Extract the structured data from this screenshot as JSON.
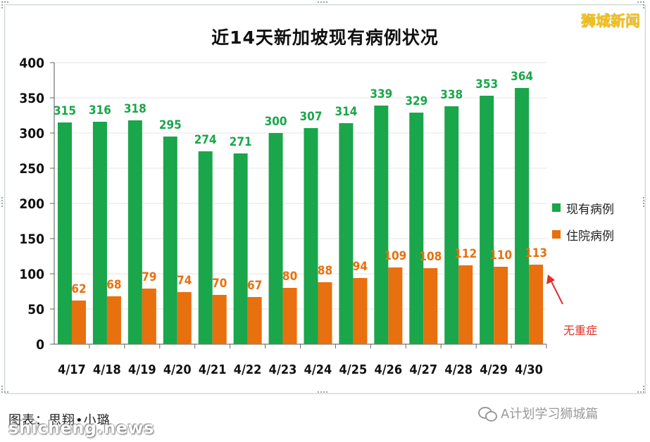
{
  "brand": "狮城新闻",
  "credit": "图表：思翔•小璐",
  "watermark": "shicheng.news",
  "wechat_account": "A计划学习狮城篇",
  "annotation": "无重症",
  "colors": {
    "existing": "#1aa64a",
    "hospitalized": "#e8700e",
    "annotation": "#e0302a"
  },
  "chart_data": {
    "type": "bar",
    "title": "近14天新加坡现有病例状况",
    "categories": [
      "4/17",
      "4/18",
      "4/19",
      "4/20",
      "4/21",
      "4/22",
      "4/23",
      "4/24",
      "4/25",
      "4/26",
      "4/27",
      "4/28",
      "4/29",
      "4/30"
    ],
    "series": [
      {
        "name": "现有病例",
        "values": [
          315,
          316,
          318,
          295,
          274,
          271,
          300,
          307,
          314,
          339,
          329,
          338,
          353,
          364
        ]
      },
      {
        "name": "住院病例",
        "values": [
          62,
          68,
          79,
          74,
          70,
          67,
          80,
          88,
          94,
          109,
          108,
          112,
          110,
          113
        ]
      }
    ],
    "ylim": [
      0,
      400
    ],
    "yticks": [
      0,
      50,
      100,
      150,
      200,
      250,
      300,
      350,
      400
    ],
    "grid": true,
    "legend": "right"
  }
}
